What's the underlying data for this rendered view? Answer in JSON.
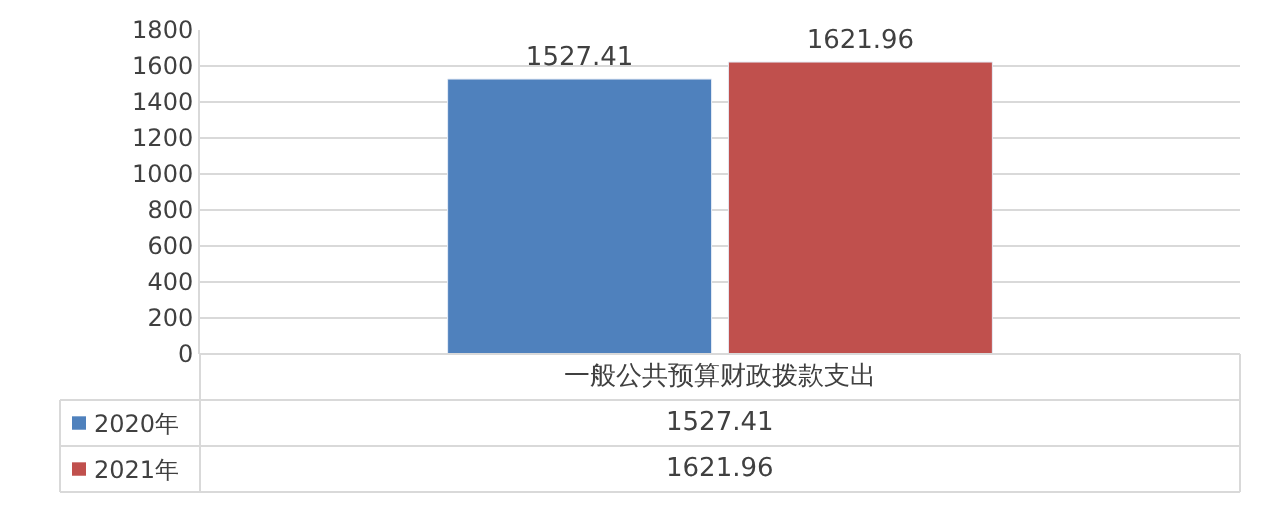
{
  "chart_data": {
    "type": "bar",
    "categories": [
      "一般公共预算财政拨款支出"
    ],
    "series": [
      {
        "name": "2020年",
        "color": "#4f81bd",
        "values": [
          1527.41
        ],
        "value_labels": [
          "1527.41"
        ]
      },
      {
        "name": "2021年",
        "color": "#c0504d",
        "values": [
          1621.96
        ],
        "value_labels": [
          "1621.96"
        ]
      }
    ],
    "ylim": [
      0,
      1800
    ],
    "yticks": [
      0,
      200,
      400,
      600,
      800,
      1000,
      1200,
      1400,
      1600,
      1800
    ],
    "grid": "y",
    "legend": "bottom left"
  }
}
